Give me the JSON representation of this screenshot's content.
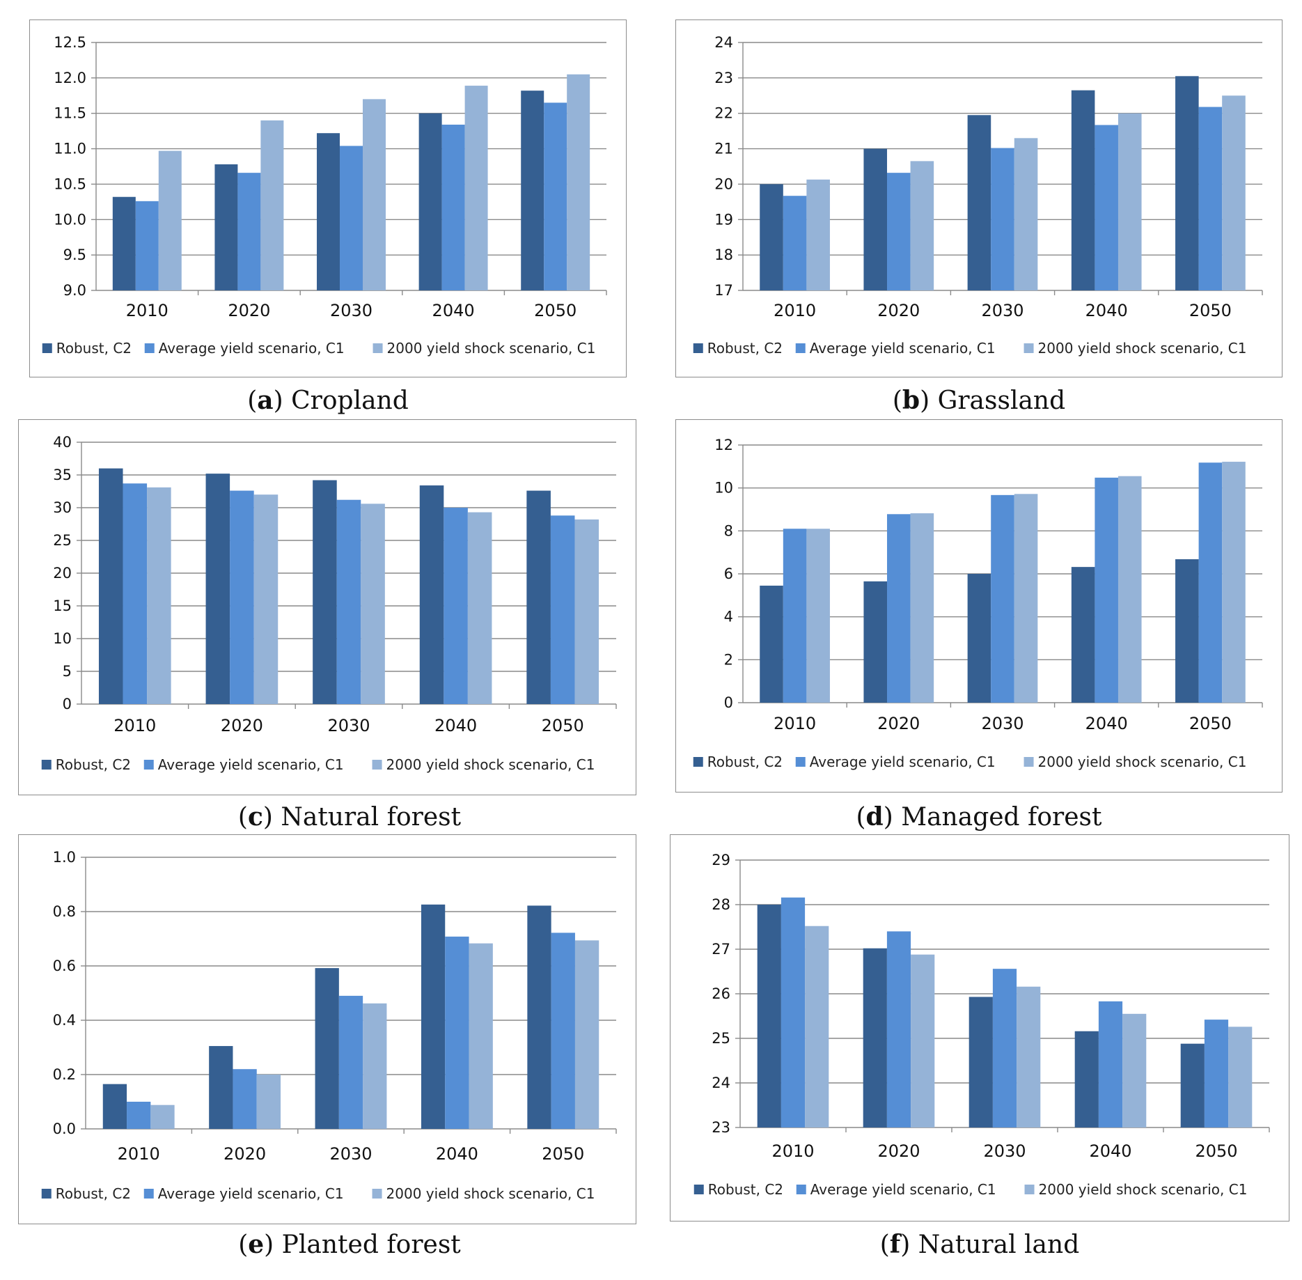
{
  "colors": {
    "Robust, C2": "#355f91",
    "Average yield scenario, C1": "#558ed5",
    "2000 yield shock scenario, C1": "#95b3d7"
  },
  "chart_data": [
    {
      "type": "bar",
      "letter": "a",
      "title": "Cropland",
      "categories": [
        "2010",
        "2020",
        "2030",
        "2040",
        "2050"
      ],
      "ylim": [
        9.0,
        12.5
      ],
      "yticks": [
        "9.0",
        "9.5",
        "10.0",
        "10.5",
        "11.0",
        "11.5",
        "12.0",
        "12.5"
      ],
      "legend": "bottom",
      "series": [
        {
          "name": "Robust, C2",
          "values": [
            10.32,
            10.78,
            11.22,
            11.5,
            11.82
          ]
        },
        {
          "name": "Average yield scenario, C1",
          "values": [
            10.26,
            10.66,
            11.04,
            11.34,
            11.65
          ]
        },
        {
          "name": "2000 yield shock scenario, C1",
          "values": [
            10.97,
            11.4,
            11.7,
            11.89,
            12.05
          ]
        }
      ]
    },
    {
      "type": "bar",
      "letter": "b",
      "title": "Grassland",
      "categories": [
        "2010",
        "2020",
        "2030",
        "2040",
        "2050"
      ],
      "ylim": [
        17,
        24
      ],
      "yticks": [
        "17",
        "18",
        "19",
        "20",
        "21",
        "22",
        "23",
        "24"
      ],
      "legend": "bottom",
      "series": [
        {
          "name": "Robust, C2",
          "values": [
            20.0,
            21.0,
            21.95,
            22.65,
            23.05
          ]
        },
        {
          "name": "Average yield scenario, C1",
          "values": [
            19.67,
            20.32,
            21.02,
            21.67,
            22.18
          ]
        },
        {
          "name": "2000 yield shock scenario, C1",
          "values": [
            20.13,
            20.65,
            21.3,
            22.0,
            22.5
          ]
        }
      ]
    },
    {
      "type": "bar",
      "letter": "c",
      "title": "Natural forest",
      "categories": [
        "2010",
        "2020",
        "2030",
        "2040",
        "2050"
      ],
      "ylim": [
        0,
        40
      ],
      "yticks": [
        "0",
        "5",
        "10",
        "15",
        "20",
        "25",
        "30",
        "35",
        "40"
      ],
      "legend": "bottom",
      "series": [
        {
          "name": "Robust, C2",
          "values": [
            36.0,
            35.2,
            34.2,
            33.4,
            32.6
          ]
        },
        {
          "name": "Average yield scenario, C1",
          "values": [
            33.7,
            32.6,
            31.2,
            30.0,
            28.8
          ]
        },
        {
          "name": "2000 yield shock scenario, C1",
          "values": [
            33.1,
            32.0,
            30.6,
            29.3,
            28.2
          ]
        }
      ]
    },
    {
      "type": "bar",
      "letter": "d",
      "title": "Managed forest",
      "categories": [
        "2010",
        "2020",
        "2030",
        "2040",
        "2050"
      ],
      "ylim": [
        0,
        12
      ],
      "yticks": [
        "0",
        "2",
        "4",
        "6",
        "8",
        "10",
        "12"
      ],
      "legend": "bottom",
      "series": [
        {
          "name": "Robust, C2",
          "values": [
            5.45,
            5.65,
            6.0,
            6.32,
            6.68
          ]
        },
        {
          "name": "Average yield scenario, C1",
          "values": [
            8.1,
            8.78,
            9.67,
            10.48,
            11.18
          ]
        },
        {
          "name": "2000 yield shock scenario, C1",
          "values": [
            8.1,
            8.82,
            9.72,
            10.55,
            11.22
          ]
        }
      ]
    },
    {
      "type": "bar",
      "letter": "e",
      "title": "Planted forest",
      "categories": [
        "2010",
        "2020",
        "2030",
        "2040",
        "2050"
      ],
      "ylim": [
        0.0,
        1.0
      ],
      "yticks": [
        "0.0",
        "0.2",
        "0.4",
        "0.6",
        "0.8",
        "1.0"
      ],
      "legend": "bottom",
      "series": [
        {
          "name": "Robust, C2",
          "values": [
            0.165,
            0.305,
            0.592,
            0.826,
            0.822
          ]
        },
        {
          "name": "Average yield scenario, C1",
          "values": [
            0.1,
            0.22,
            0.49,
            0.708,
            0.722
          ]
        },
        {
          "name": "2000 yield shock scenario, C1",
          "values": [
            0.088,
            0.2,
            0.462,
            0.683,
            0.694
          ]
        }
      ]
    },
    {
      "type": "bar",
      "letter": "f",
      "title": "Natural land",
      "categories": [
        "2010",
        "2020",
        "2030",
        "2040",
        "2050"
      ],
      "ylim": [
        23,
        29
      ],
      "yticks": [
        "23",
        "24",
        "25",
        "26",
        "27",
        "28",
        "29"
      ],
      "legend": "bottom",
      "series": [
        {
          "name": "Robust, C2",
          "values": [
            28.0,
            27.02,
            25.93,
            25.16,
            24.88
          ]
        },
        {
          "name": "Average yield scenario, C1",
          "values": [
            28.16,
            27.4,
            26.56,
            25.83,
            25.42
          ]
        },
        {
          "name": "2000 yield shock scenario, C1",
          "values": [
            27.52,
            26.88,
            26.16,
            25.55,
            25.26
          ]
        }
      ]
    }
  ]
}
